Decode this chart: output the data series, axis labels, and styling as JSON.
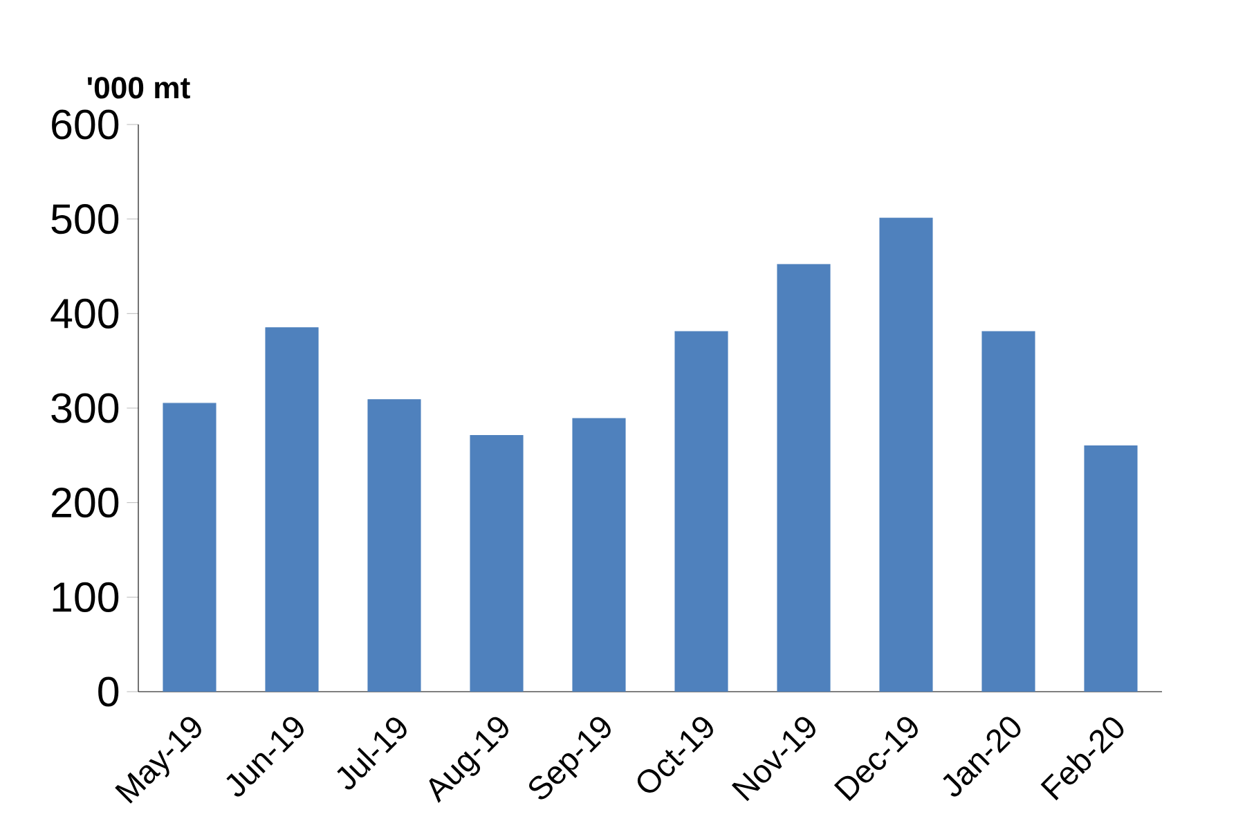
{
  "chart_data": {
    "type": "bar",
    "ylabel": "'000 mt",
    "categories": [
      "May-19",
      "Jun-19",
      "Jul-19",
      "Aug-19",
      "Sep-19",
      "Oct-19",
      "Nov-19",
      "Dec-19",
      "Jan-20",
      "Feb-20"
    ],
    "values": [
      305,
      385,
      309,
      271,
      289,
      381,
      452,
      501,
      381,
      260
    ],
    "color": "#4f81bd",
    "ylim": [
      0,
      600
    ],
    "yticks": [
      0,
      100,
      200,
      300,
      400,
      500,
      600
    ]
  }
}
